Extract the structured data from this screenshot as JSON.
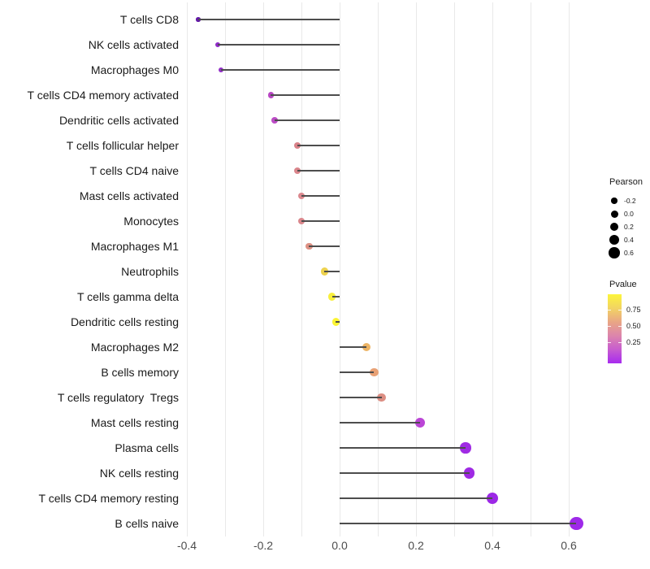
{
  "chart_data": {
    "type": "bar",
    "variant": "horizontal-lollipop",
    "title": "",
    "xlabel": "",
    "ylabel": "",
    "xlim": [
      -0.45,
      0.67
    ],
    "x_tick_labels": [
      "-0.4",
      "-0.2",
      "0.0",
      "0.2",
      "0.4",
      "0.6"
    ],
    "grid": "vertical light-gray gridlines every 0.1, no horizontal gridlines",
    "size_encoding": "dot size = Pearson correlation",
    "color_encoding": "dot color = Pvalue (yellow high, purple low)",
    "legend_position": "right",
    "points": [
      {
        "label": "T cells CD8",
        "pearson": -0.37,
        "color": "#6318A8"
      },
      {
        "label": "NK cells activated",
        "pearson": -0.32,
        "color": "#8F2BC8"
      },
      {
        "label": "Macrophages M0",
        "pearson": -0.31,
        "color": "#9330C8"
      },
      {
        "label": "T cells CD4 memory activated",
        "pearson": -0.18,
        "color": "#B847C3"
      },
      {
        "label": "Dendritic cells activated",
        "pearson": -0.17,
        "color": "#BC4CC6"
      },
      {
        "label": "T cells follicular helper",
        "pearson": -0.11,
        "color": "#D98289"
      },
      {
        "label": "T cells CD4 naive",
        "pearson": -0.11,
        "color": "#DA858B"
      },
      {
        "label": "Mast cells activated",
        "pearson": -0.1,
        "color": "#DB888E"
      },
      {
        "label": "Monocytes",
        "pearson": -0.1,
        "color": "#DA878C"
      },
      {
        "label": "Macrophages M1",
        "pearson": -0.08,
        "color": "#DD9184"
      },
      {
        "label": "Neutrophils",
        "pearson": -0.04,
        "color": "#EDD24E"
      },
      {
        "label": "T cells gamma delta",
        "pearson": -0.02,
        "color": "#F8EF3C"
      },
      {
        "label": "Dendritic cells resting",
        "pearson": -0.01,
        "color": "#FBF434"
      },
      {
        "label": "Macrophages M2",
        "pearson": 0.07,
        "color": "#ECB465"
      },
      {
        "label": "B cells memory",
        "pearson": 0.09,
        "color": "#E8A175"
      },
      {
        "label": "T cells regulatory  Tregs",
        "pearson": 0.11,
        "color": "#DC8E83"
      },
      {
        "label": "Mast cells resting",
        "pearson": 0.21,
        "color": "#BB45D6"
      },
      {
        "label": "Plasma cells",
        "pearson": 0.33,
        "color": "#A02BE4"
      },
      {
        "label": "NK cells resting",
        "pearson": 0.34,
        "color": "#9F2AE4"
      },
      {
        "label": "T cells CD4 memory resting",
        "pearson": 0.4,
        "color": "#9C28E6"
      },
      {
        "label": "B cells naive",
        "pearson": 0.62,
        "color": "#9E29E9"
      }
    ]
  },
  "legend": {
    "pearson": {
      "title": "Pearson",
      "items": [
        "-0.2",
        "0.0",
        "0.2",
        "0.4",
        "0.6"
      ]
    },
    "pvalue": {
      "title": "Pvalue",
      "tick_labels": [
        "0.75",
        "0.50",
        "0.25"
      ],
      "gradient_top_to_bottom": [
        "#FCF53B",
        "#F2D463",
        "#E9A685",
        "#DC85AC",
        "#C75CCF",
        "#A72BEF"
      ]
    }
  }
}
